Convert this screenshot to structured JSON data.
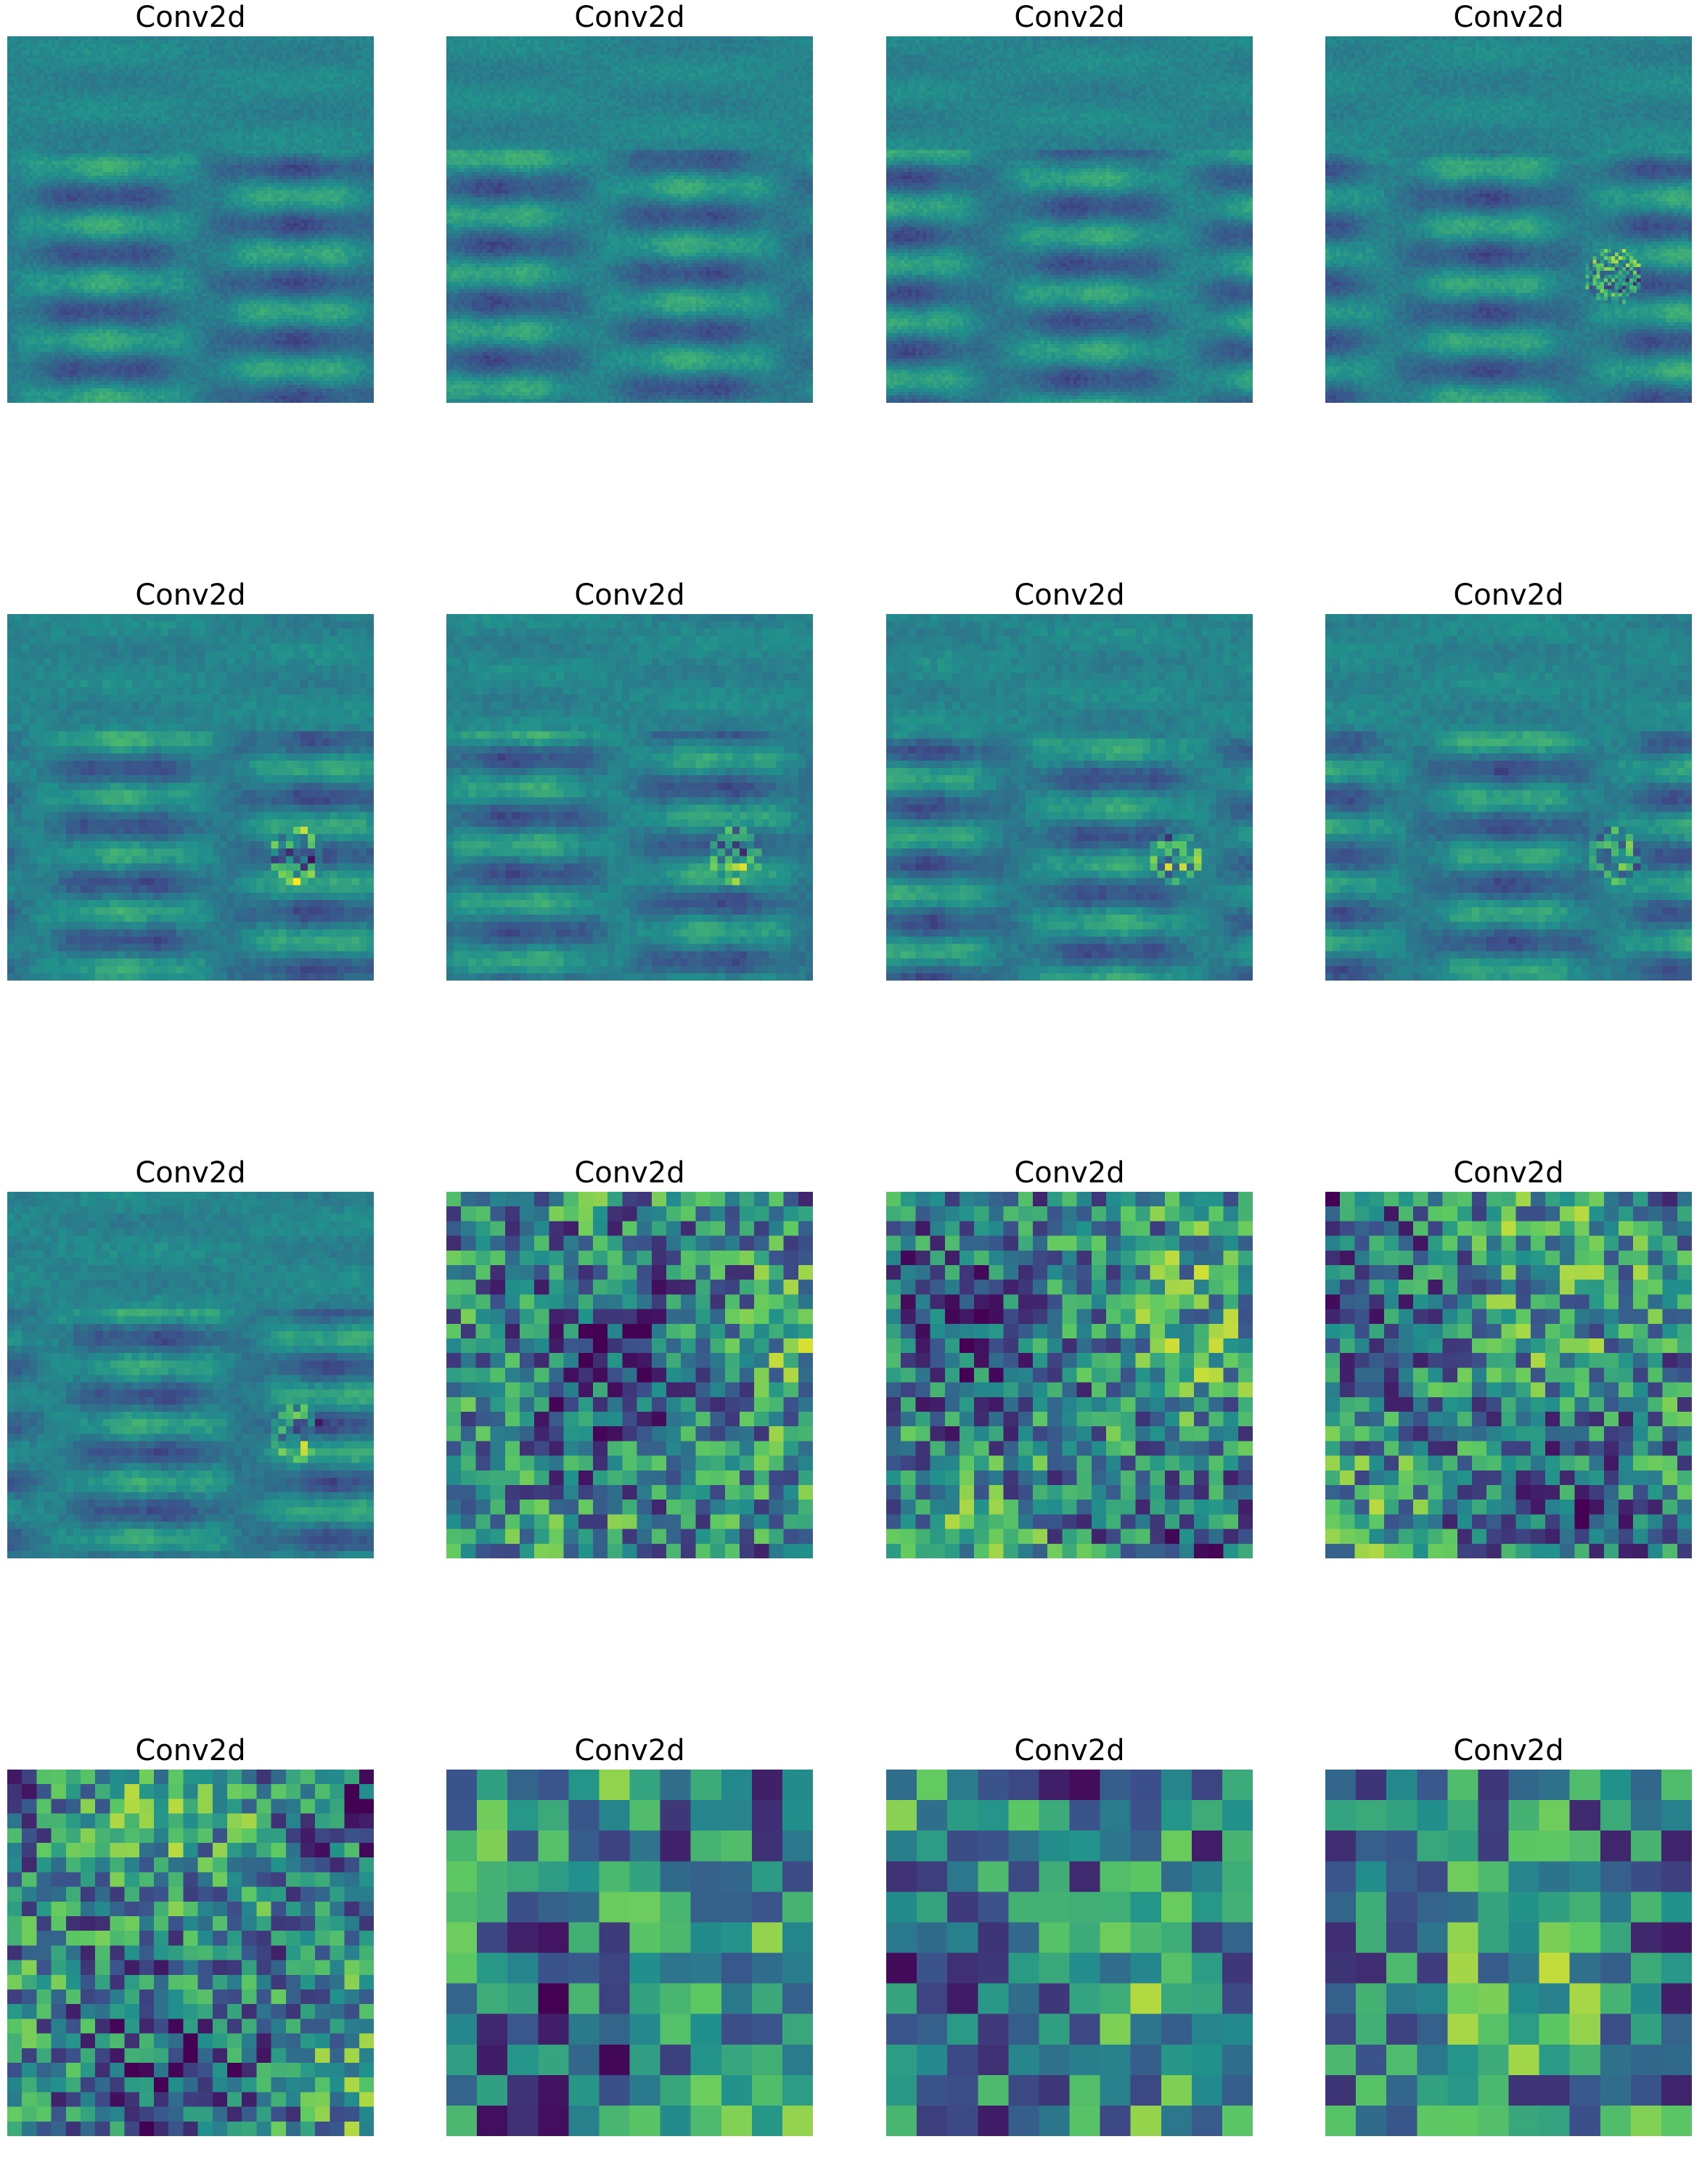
{
  "figure": {
    "colormap": "viridis",
    "colormap_stops": [
      "#440154",
      "#3b528b",
      "#21918c",
      "#5ec962",
      "#fde725"
    ],
    "panels": [
      {
        "title": "Conv2d",
        "grid_resolution": 100
      },
      {
        "title": "Conv2d",
        "grid_resolution": 100
      },
      {
        "title": "Conv2d",
        "grid_resolution": 100
      },
      {
        "title": "Conv2d",
        "grid_resolution": 100
      },
      {
        "title": "Conv2d",
        "grid_resolution": 50
      },
      {
        "title": "Conv2d",
        "grid_resolution": 50
      },
      {
        "title": "Conv2d",
        "grid_resolution": 50
      },
      {
        "title": "Conv2d",
        "grid_resolution": 50
      },
      {
        "title": "Conv2d",
        "grid_resolution": 50
      },
      {
        "title": "Conv2d",
        "grid_resolution": 25
      },
      {
        "title": "Conv2d",
        "grid_resolution": 25
      },
      {
        "title": "Conv2d",
        "grid_resolution": 25
      },
      {
        "title": "Conv2d",
        "grid_resolution": 25
      },
      {
        "title": "Conv2d",
        "grid_resolution": 12
      },
      {
        "title": "Conv2d",
        "grid_resolution": 12
      },
      {
        "title": "Conv2d",
        "grid_resolution": 12
      }
    ]
  }
}
